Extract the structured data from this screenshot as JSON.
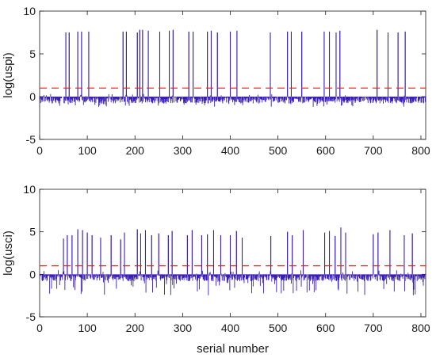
{
  "chart_data": [
    {
      "type": "line",
      "ylabel": "log(uspi)",
      "xlabel": "",
      "xlim": [
        0,
        810
      ],
      "ylim": [
        -5,
        10
      ],
      "xticks": [
        0,
        100,
        200,
        300,
        400,
        500,
        600,
        700,
        800
      ],
      "yticks": [
        -5,
        0,
        5,
        10
      ],
      "threshold": 1.0,
      "grid": false,
      "baseline_range": [
        -1.2,
        0.3
      ],
      "n_points": 810,
      "spikes": [
        {
          "x": 55,
          "y": 7.5
        },
        {
          "x": 62,
          "y": 7.5
        },
        {
          "x": 80,
          "y": 7.6
        },
        {
          "x": 88,
          "y": 7.6
        },
        {
          "x": 103,
          "y": 7.6
        },
        {
          "x": 175,
          "y": 7.6
        },
        {
          "x": 182,
          "y": 7.6
        },
        {
          "x": 205,
          "y": 7.5
        },
        {
          "x": 210,
          "y": 7.8
        },
        {
          "x": 216,
          "y": 7.8
        },
        {
          "x": 228,
          "y": 7.7
        },
        {
          "x": 252,
          "y": 7.6
        },
        {
          "x": 272,
          "y": 7.7
        },
        {
          "x": 280,
          "y": 7.8
        },
        {
          "x": 313,
          "y": 7.6
        },
        {
          "x": 322,
          "y": 7.6
        },
        {
          "x": 352,
          "y": 7.6
        },
        {
          "x": 360,
          "y": 7.7
        },
        {
          "x": 373,
          "y": 7.5
        },
        {
          "x": 400,
          "y": 7.6
        },
        {
          "x": 414,
          "y": 7.7
        },
        {
          "x": 484,
          "y": 7.5
        },
        {
          "x": 520,
          "y": 7.6
        },
        {
          "x": 528,
          "y": 7.6
        },
        {
          "x": 550,
          "y": 7.6
        },
        {
          "x": 597,
          "y": 7.6
        },
        {
          "x": 608,
          "y": 7.6
        },
        {
          "x": 622,
          "y": 7.5
        },
        {
          "x": 630,
          "y": 7.7
        },
        {
          "x": 708,
          "y": 7.8
        },
        {
          "x": 731,
          "y": 7.5
        },
        {
          "x": 752,
          "y": 7.5
        },
        {
          "x": 767,
          "y": 7.6
        }
      ]
    },
    {
      "type": "line",
      "ylabel": "log(usci)",
      "xlabel": "serial number",
      "xlim": [
        0,
        810
      ],
      "ylim": [
        -5,
        10
      ],
      "xticks": [
        0,
        100,
        200,
        300,
        400,
        500,
        600,
        700,
        800
      ],
      "yticks": [
        -5,
        0,
        5,
        10
      ],
      "threshold": 1.0,
      "grid": false,
      "baseline_range": [
        -2.5,
        0.5
      ],
      "n_points": 810,
      "spikes": [
        {
          "x": 50,
          "y": 4.2
        },
        {
          "x": 58,
          "y": 4.6
        },
        {
          "x": 68,
          "y": 4.6
        },
        {
          "x": 80,
          "y": 5.3
        },
        {
          "x": 90,
          "y": 5.2
        },
        {
          "x": 100,
          "y": 4.9
        },
        {
          "x": 110,
          "y": 4.6
        },
        {
          "x": 128,
          "y": 4.3
        },
        {
          "x": 150,
          "y": 4.6
        },
        {
          "x": 170,
          "y": 4.1
        },
        {
          "x": 178,
          "y": 4.9
        },
        {
          "x": 205,
          "y": 5.3
        },
        {
          "x": 212,
          "y": 4.8
        },
        {
          "x": 222,
          "y": 5.2
        },
        {
          "x": 235,
          "y": 4.6
        },
        {
          "x": 250,
          "y": 4.8
        },
        {
          "x": 270,
          "y": 4.6
        },
        {
          "x": 278,
          "y": 5.1
        },
        {
          "x": 310,
          "y": 4.6
        },
        {
          "x": 320,
          "y": 5.2
        },
        {
          "x": 340,
          "y": 4.6
        },
        {
          "x": 352,
          "y": 4.7
        },
        {
          "x": 365,
          "y": 5.2
        },
        {
          "x": 380,
          "y": 4.6
        },
        {
          "x": 400,
          "y": 4.6
        },
        {
          "x": 413,
          "y": 5.1
        },
        {
          "x": 425,
          "y": 4.3
        },
        {
          "x": 485,
          "y": 4.5
        },
        {
          "x": 520,
          "y": 5.0
        },
        {
          "x": 530,
          "y": 4.6
        },
        {
          "x": 553,
          "y": 5.2
        },
        {
          "x": 598,
          "y": 4.9
        },
        {
          "x": 608,
          "y": 5.1
        },
        {
          "x": 620,
          "y": 4.5
        },
        {
          "x": 632,
          "y": 5.5
        },
        {
          "x": 642,
          "y": 4.9
        },
        {
          "x": 700,
          "y": 4.7
        },
        {
          "x": 710,
          "y": 4.9
        },
        {
          "x": 735,
          "y": 5.2
        },
        {
          "x": 765,
          "y": 4.6
        },
        {
          "x": 782,
          "y": 4.8
        }
      ]
    }
  ],
  "colors": {
    "series": "#3b1fb5",
    "threshold": "#e3241b",
    "axis": "#1a1a1a"
  }
}
